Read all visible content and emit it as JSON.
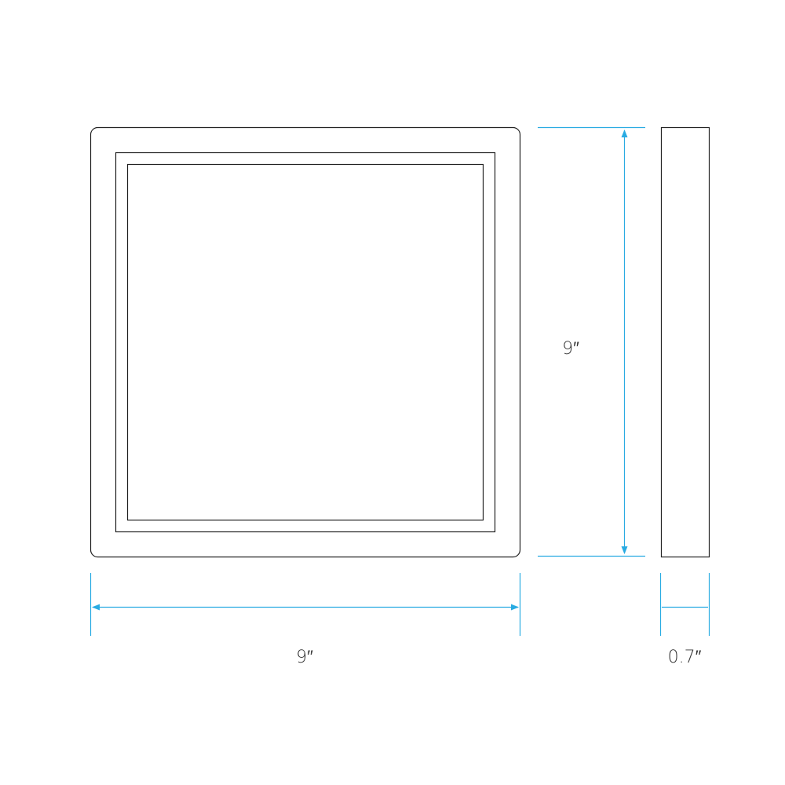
{
  "diagram": {
    "width_label": "9″",
    "height_label": "9″",
    "depth_label": "0.7″",
    "colors": {
      "outline": "#222222",
      "dimension": "#29abe2"
    }
  }
}
